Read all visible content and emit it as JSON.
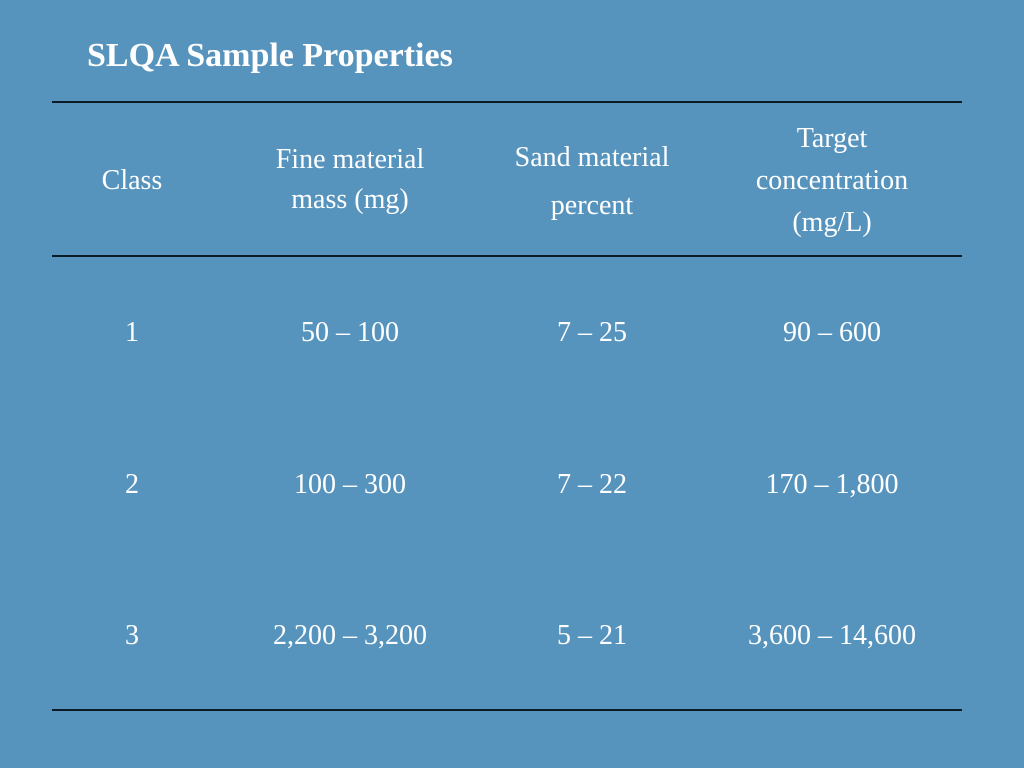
{
  "slide": {
    "title": "SLQA Sample Properties"
  },
  "table": {
    "headers": [
      [
        "Class"
      ],
      [
        "Fine material",
        "mass (mg)"
      ],
      [
        "Sand material",
        "percent"
      ],
      [
        "Target",
        "concentration",
        "(mg/L)"
      ]
    ],
    "rows": [
      [
        "1",
        "50 – 100",
        "7 – 25",
        "90 – 600"
      ],
      [
        "2",
        "100 – 300",
        "7 – 22",
        "170 – 1,800"
      ],
      [
        "3",
        "2,200 – 3,200",
        "5 – 21",
        "3,600 – 14,600"
      ]
    ]
  }
}
